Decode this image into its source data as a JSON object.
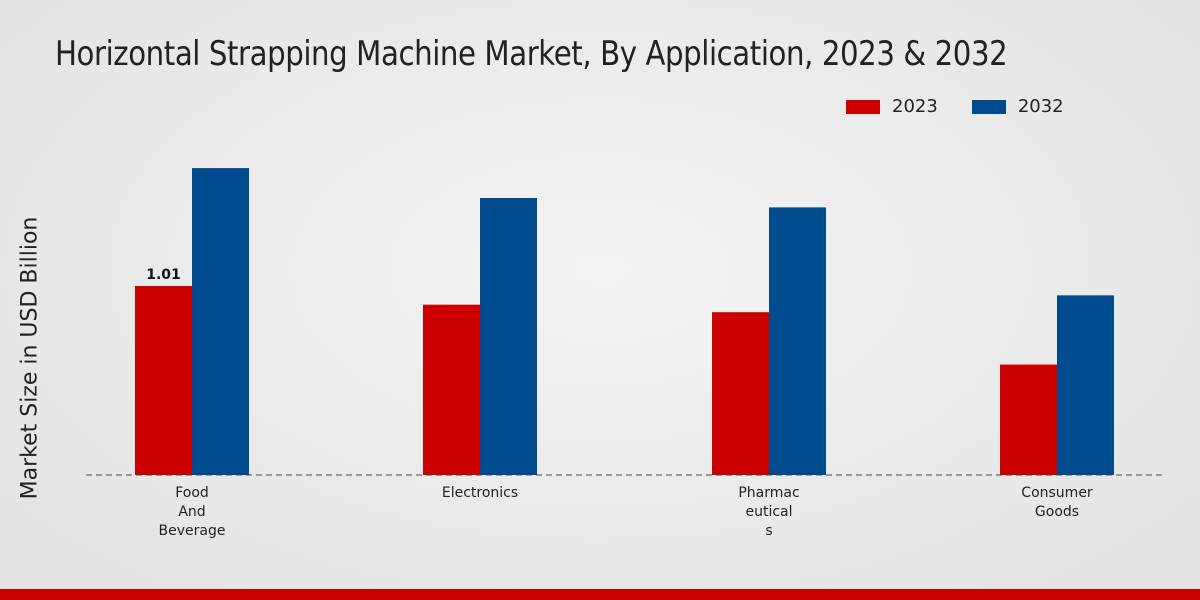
{
  "chart_data": {
    "type": "bar",
    "title": "Horizontal Strapping Machine Market, By Application, 2023 & 2032",
    "ylabel": "Market Size in USD Billion",
    "xlabel": "",
    "categories": [
      [
        "Food",
        "And",
        "Beverage"
      ],
      [
        "Electronics"
      ],
      [
        "Pharmac",
        "eutical",
        "s"
      ],
      [
        "Consumer",
        "Goods"
      ]
    ],
    "series": [
      {
        "name": "2023",
        "color": "#cc0000",
        "values": [
          1.01,
          0.91,
          0.87,
          0.59
        ]
      },
      {
        "name": "2032",
        "color": "#004a8f",
        "values": [
          1.64,
          1.48,
          1.43,
          0.96
        ]
      }
    ],
    "data_labels": [
      {
        "series": 0,
        "index": 0,
        "text": "1.01"
      }
    ],
    "ylim": [
      0,
      2.5
    ],
    "grid": false,
    "legend_position": "top-right"
  }
}
